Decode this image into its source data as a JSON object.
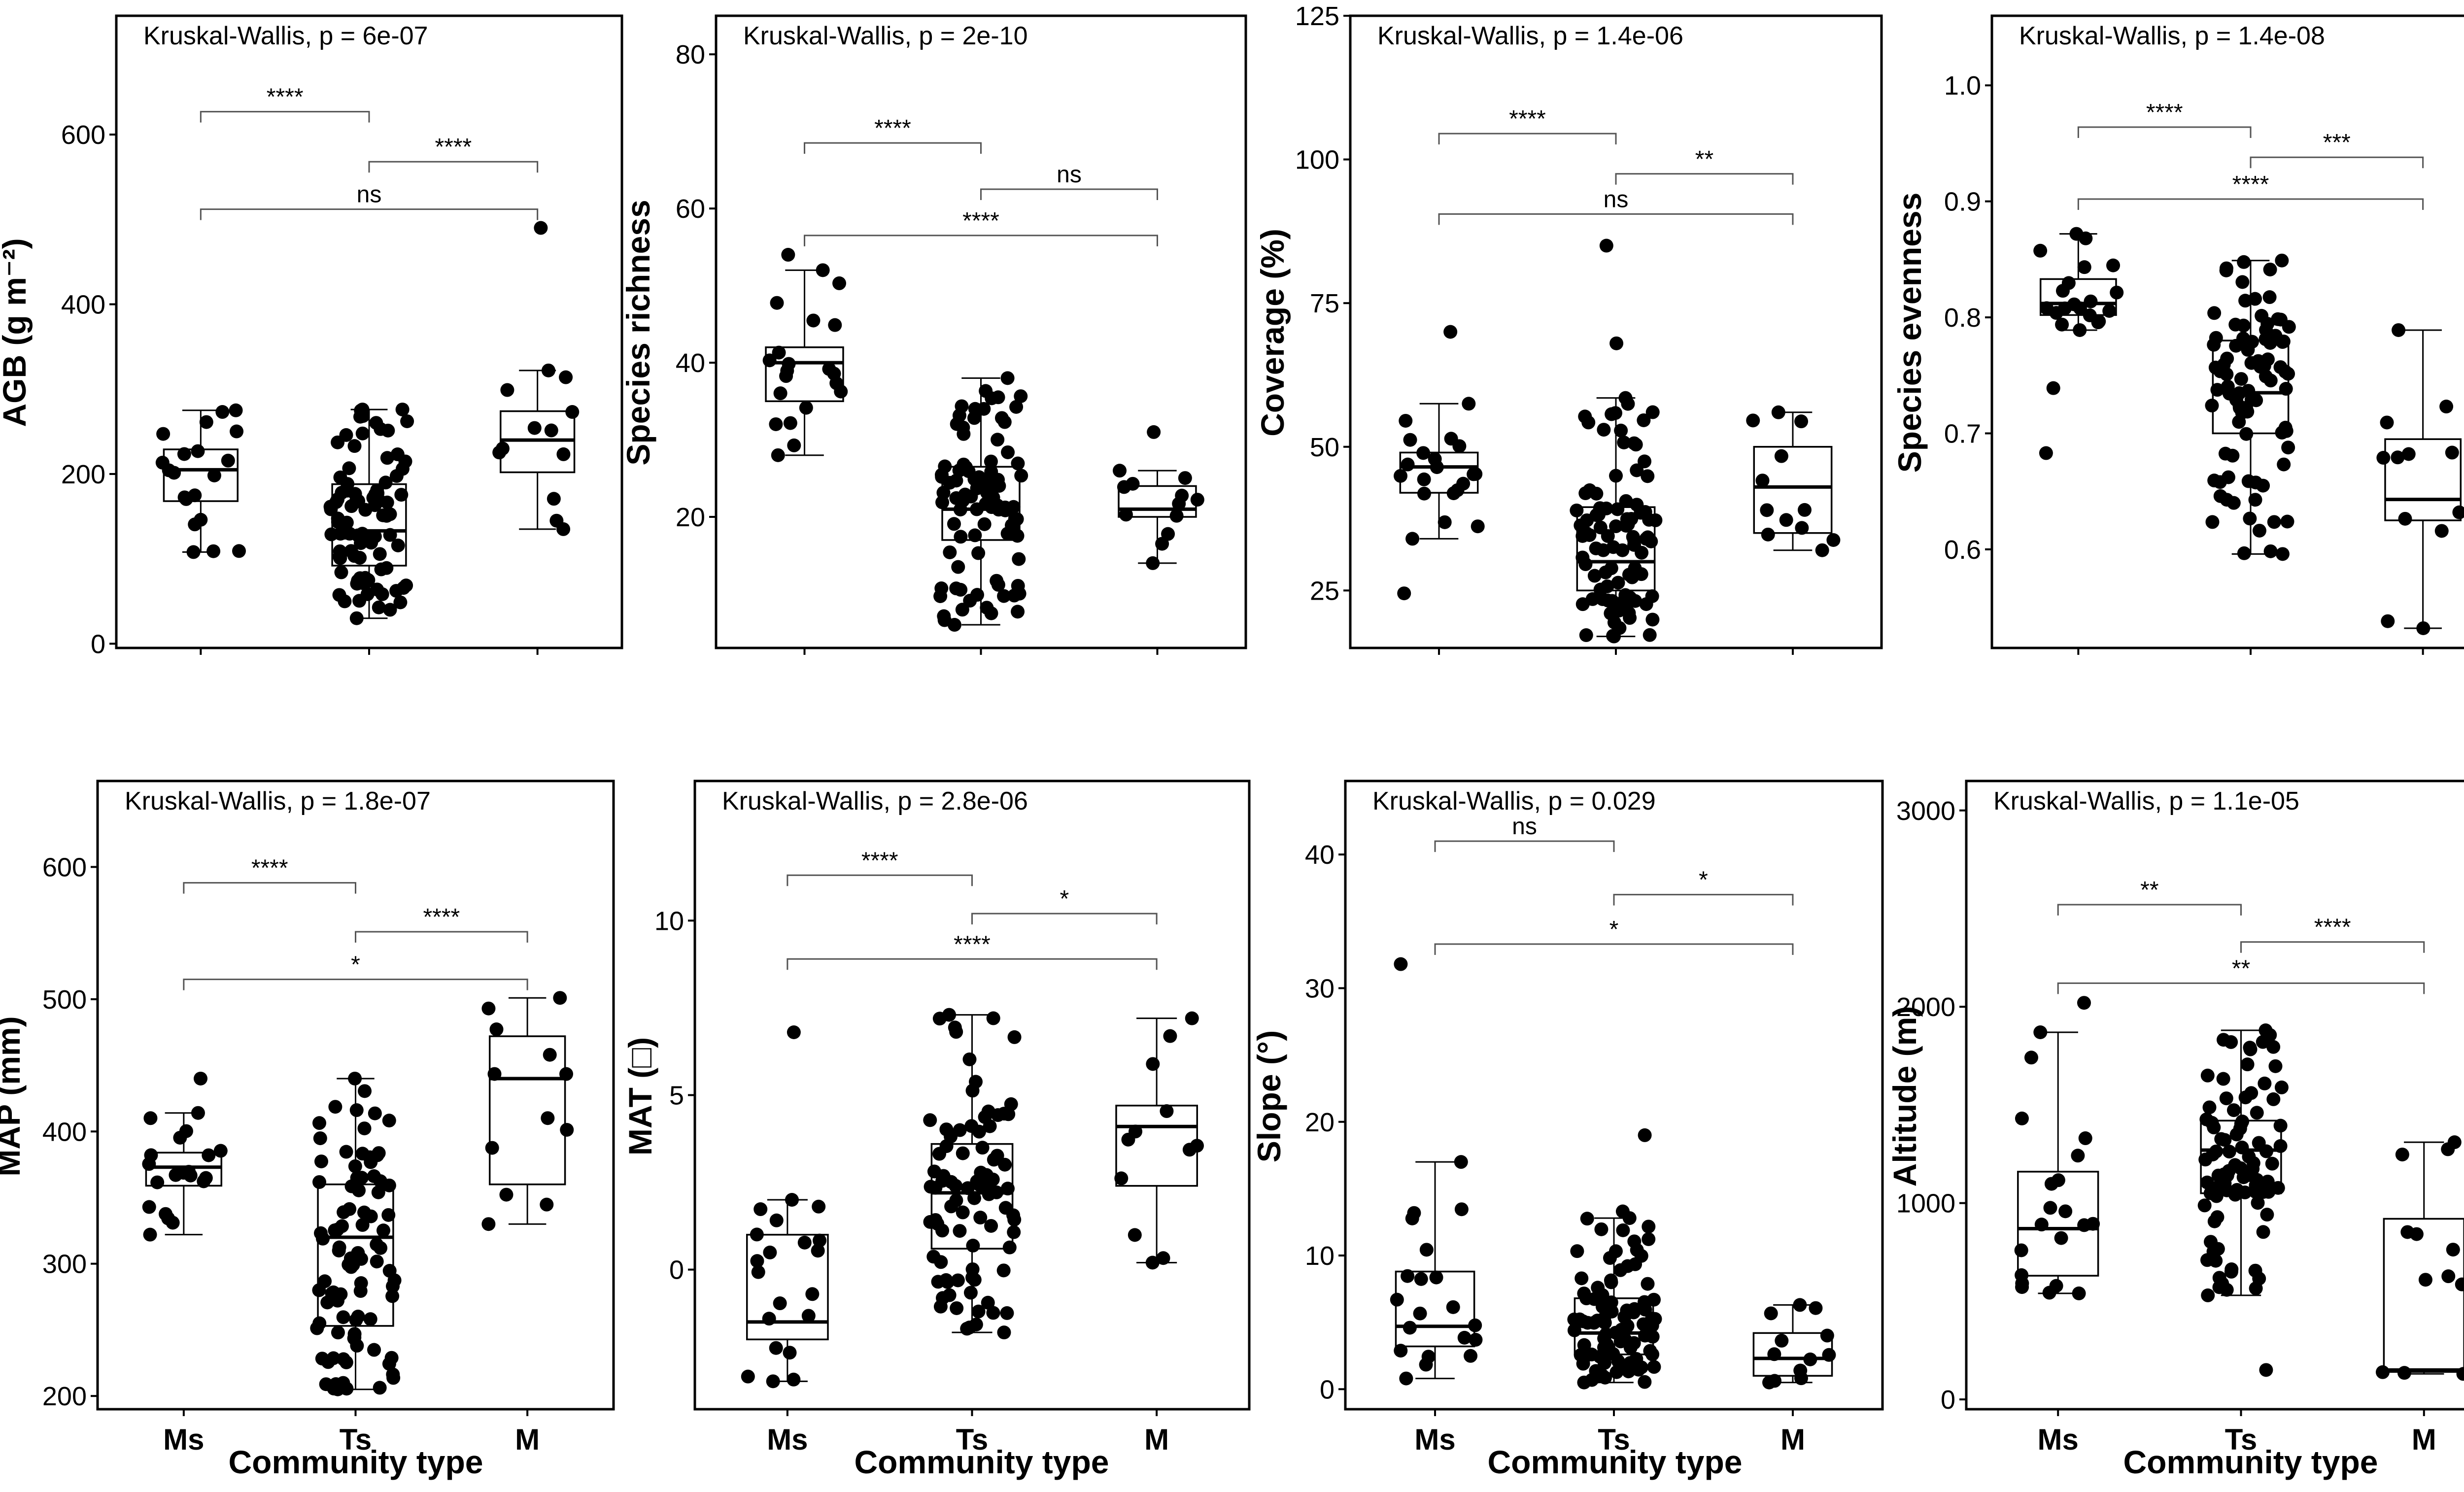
{
  "figure": {
    "x_title": "Community type",
    "categories": [
      "Ms",
      "Ts",
      "M"
    ]
  },
  "chart_data": [
    {
      "id": "agb",
      "type": "box",
      "ylabel": "AGB (g m⁻²)",
      "kruskal": "Kruskal-Wallis, p = 6e-07",
      "ylim": [
        -5,
        740
      ],
      "yticks": [
        0,
        200,
        400,
        600
      ],
      "y_tick_labels": [
        "0",
        "200",
        "400",
        "600"
      ],
      "boxes": [
        {
          "group": "Ms",
          "q1": 168,
          "median": 205,
          "q3": 229,
          "whisker_low": 108,
          "whisker_high": 275,
          "n": 20
        },
        {
          "group": "Ts",
          "q1": 92,
          "median": 133,
          "q3": 188,
          "whisker_low": 30,
          "whisker_high": 276,
          "n": 90
        },
        {
          "group": "M",
          "q1": 202,
          "median": 240,
          "q3": 274,
          "whisker_low": 135,
          "whisker_high": 322,
          "n": 12
        }
      ],
      "outliers": [
        {
          "group": "M",
          "value": 490
        }
      ],
      "comparisons": [
        {
          "from": "Ms",
          "to": "Ts",
          "label": "****",
          "y": 627
        },
        {
          "from": "Ts",
          "to": "M",
          "label": "****",
          "y": 568
        },
        {
          "from": "Ms",
          "to": "M",
          "label": "ns",
          "y": 512
        }
      ]
    },
    {
      "id": "richness",
      "type": "box",
      "ylabel": "Species richness",
      "kruskal": "Kruskal-Wallis, p = 2e-10",
      "ylim": [
        3,
        85
      ],
      "yticks": [
        20,
        40,
        60,
        80
      ],
      "y_tick_labels": [
        "20",
        "40",
        "60",
        "80"
      ],
      "boxes": [
        {
          "group": "Ms",
          "q1": 35,
          "median": 40,
          "q3": 42,
          "whisker_low": 28,
          "whisker_high": 52,
          "n": 20
        },
        {
          "group": "Ts",
          "q1": 17,
          "median": 21,
          "q3": 26.5,
          "whisker_low": 6,
          "whisker_high": 38,
          "n": 90
        },
        {
          "group": "M",
          "q1": 20,
          "median": 21,
          "q3": 24,
          "whisker_low": 14,
          "whisker_high": 26,
          "n": 12
        }
      ],
      "outliers": [
        {
          "group": "Ms",
          "value": 54
        },
        {
          "group": "M",
          "value": 31
        }
      ],
      "comparisons": [
        {
          "from": "Ms",
          "to": "Ts",
          "label": "****",
          "y": 68.5
        },
        {
          "from": "Ts",
          "to": "M",
          "label": "ns",
          "y": 62.5
        },
        {
          "from": "Ms",
          "to": "M",
          "label": "****",
          "y": 56.5
        }
      ]
    },
    {
      "id": "coverage",
      "type": "box",
      "ylabel": "Coverage (%)",
      "kruskal": "Kruskal-Wallis, p = 1.4e-06",
      "ylim": [
        15,
        125
      ],
      "yticks": [
        25,
        50,
        75,
        100,
        125
      ],
      "y_tick_labels": [
        "25",
        "50",
        "75",
        "100",
        "125"
      ],
      "boxes": [
        {
          "group": "Ms",
          "q1": 42,
          "median": 46.5,
          "q3": 49,
          "whisker_low": 34,
          "whisker_high": 57.5,
          "n": 20
        },
        {
          "group": "Ts",
          "q1": 25,
          "median": 30,
          "q3": 39.5,
          "whisker_low": 17,
          "whisker_high": 58.5,
          "n": 90
        },
        {
          "group": "M",
          "q1": 35,
          "median": 43,
          "q3": 50,
          "whisker_low": 32,
          "whisker_high": 56,
          "n": 12
        }
      ],
      "outliers": [
        {
          "group": "Ms",
          "value": 70
        },
        {
          "group": "Ms",
          "value": 24.5
        },
        {
          "group": "Ts",
          "value": 68
        },
        {
          "group": "Ts",
          "value": 85
        }
      ],
      "comparisons": [
        {
          "from": "Ms",
          "to": "Ts",
          "label": "****",
          "y": 104.5
        },
        {
          "from": "Ts",
          "to": "M",
          "label": "**",
          "y": 97.5
        },
        {
          "from": "Ms",
          "to": "M",
          "label": "ns",
          "y": 90.5
        }
      ]
    },
    {
      "id": "evenness",
      "type": "box",
      "ylabel": "Species evenness",
      "kruskal": "Kruskal-Wallis, p = 1.4e-08",
      "ylim": [
        0.515,
        1.06
      ],
      "yticks": [
        0.6,
        0.7,
        0.8,
        0.9,
        1.0
      ],
      "y_tick_labels": [
        "0.6",
        "0.7",
        "0.8",
        "0.9",
        "1.0"
      ],
      "boxes": [
        {
          "group": "Ms",
          "q1": 0.802,
          "median": 0.812,
          "q3": 0.833,
          "whisker_low": 0.789,
          "whisker_high": 0.872,
          "n": 20
        },
        {
          "group": "Ts",
          "q1": 0.7,
          "median": 0.735,
          "q3": 0.78,
          "whisker_low": 0.596,
          "whisker_high": 0.849,
          "n": 90
        },
        {
          "group": "M",
          "q1": 0.625,
          "median": 0.643,
          "q3": 0.695,
          "whisker_low": 0.532,
          "whisker_high": 0.789,
          "n": 12
        }
      ],
      "outliers": [
        {
          "group": "Ms",
          "value": 0.739
        },
        {
          "group": "Ms",
          "value": 0.683
        }
      ],
      "comparisons": [
        {
          "from": "Ms",
          "to": "Ts",
          "label": "****",
          "y": 0.964
        },
        {
          "from": "Ts",
          "to": "M",
          "label": "***",
          "y": 0.938
        },
        {
          "from": "Ms",
          "to": "M",
          "label": "****",
          "y": 0.902
        }
      ]
    },
    {
      "id": "map",
      "type": "box",
      "ylabel": "MAP (mm)",
      "kruskal": "Kruskal-Wallis, p = 1.8e-07",
      "ylim": [
        190,
        665
      ],
      "yticks": [
        200,
        300,
        400,
        500,
        600
      ],
      "y_tick_labels": [
        "200",
        "300",
        "400",
        "500",
        "600"
      ],
      "boxes": [
        {
          "group": "Ms",
          "q1": 359,
          "median": 373,
          "q3": 384,
          "whisker_low": 322,
          "whisker_high": 414,
          "n": 20
        },
        {
          "group": "Ts",
          "q1": 253,
          "median": 320,
          "q3": 360,
          "whisker_low": 205,
          "whisker_high": 440,
          "n": 90
        },
        {
          "group": "M",
          "q1": 360,
          "median": 440,
          "q3": 472,
          "whisker_low": 330,
          "whisker_high": 501,
          "n": 12
        }
      ],
      "outliers": [
        {
          "group": "Ms",
          "value": 440
        }
      ],
      "comparisons": [
        {
          "from": "Ms",
          "to": "Ts",
          "label": "****",
          "y": 588
        },
        {
          "from": "Ts",
          "to": "M",
          "label": "****",
          "y": 551
        },
        {
          "from": "Ms",
          "to": "M",
          "label": "*",
          "y": 515
        }
      ]
    },
    {
      "id": "mat",
      "type": "box",
      "ylabel": "MAT (□)",
      "kruskal": "Kruskal-Wallis, p = 2.8e-06",
      "ylim": [
        -4,
        14
      ],
      "yticks": [
        0,
        5,
        10
      ],
      "y_tick_labels": [
        "0",
        "5",
        "10"
      ],
      "boxes": [
        {
          "group": "Ms",
          "q1": -2.0,
          "median": -1.5,
          "q3": 1.0,
          "whisker_low": -3.2,
          "whisker_high": 2.0,
          "n": 20
        },
        {
          "group": "Ts",
          "q1": 0.6,
          "median": 2.2,
          "q3": 3.6,
          "whisker_low": -1.8,
          "whisker_high": 7.3,
          "n": 90
        },
        {
          "group": "M",
          "q1": 2.4,
          "median": 4.1,
          "q3": 4.7,
          "whisker_low": 0.2,
          "whisker_high": 7.2,
          "n": 12
        }
      ],
      "outliers": [
        {
          "group": "Ms",
          "value": 6.8
        }
      ],
      "comparisons": [
        {
          "from": "Ms",
          "to": "Ts",
          "label": "****",
          "y": 11.3
        },
        {
          "from": "Ts",
          "to": "M",
          "label": "*",
          "y": 10.2
        },
        {
          "from": "Ms",
          "to": "M",
          "label": "****",
          "y": 8.9
        }
      ]
    },
    {
      "id": "slope",
      "type": "box",
      "ylabel": "Slope (°)",
      "kruskal": "Kruskal-Wallis, p = 0.029",
      "ylim": [
        -1.5,
        45.5
      ],
      "yticks": [
        0,
        10,
        20,
        30,
        40
      ],
      "y_tick_labels": [
        "0",
        "10",
        "20",
        "30",
        "40"
      ],
      "boxes": [
        {
          "group": "Ms",
          "q1": 3.2,
          "median": 4.7,
          "q3": 8.8,
          "whisker_low": 0.8,
          "whisker_high": 17.0,
          "n": 20
        },
        {
          "group": "Ts",
          "q1": 2.6,
          "median": 4.2,
          "q3": 6.8,
          "whisker_low": 0.5,
          "whisker_high": 12.8,
          "n": 90
        },
        {
          "group": "M",
          "q1": 1.0,
          "median": 2.3,
          "q3": 4.2,
          "whisker_low": 0.5,
          "whisker_high": 6.3,
          "n": 12
        }
      ],
      "outliers": [
        {
          "group": "Ms",
          "value": 31.8
        },
        {
          "group": "Ts",
          "value": 19.0
        },
        {
          "group": "Ts",
          "value": 13.3
        }
      ],
      "comparisons": [
        {
          "from": "Ms",
          "to": "Ts",
          "label": "ns",
          "y": 41
        },
        {
          "from": "Ts",
          "to": "M",
          "label": "*",
          "y": 37
        },
        {
          "from": "Ms",
          "to": "M",
          "label": "*",
          "y": 33.3
        }
      ]
    },
    {
      "id": "altitude",
      "type": "box",
      "ylabel": "Altitude (m)",
      "kruskal": "Kruskal-Wallis, p = 1.1e-05",
      "ylim": [
        -50,
        3150
      ],
      "yticks": [
        0,
        1000,
        2000,
        3000
      ],
      "y_tick_labels": [
        "0",
        "1000",
        "2000",
        "3000"
      ],
      "boxes": [
        {
          "group": "Ms",
          "q1": 630,
          "median": 870,
          "q3": 1160,
          "whisker_low": 540,
          "whisker_high": 1870,
          "n": 20
        },
        {
          "group": "Ts",
          "q1": 1050,
          "median": 1270,
          "q3": 1420,
          "whisker_low": 530,
          "whisker_high": 1880,
          "n": 90
        },
        {
          "group": "M",
          "q1": 140,
          "median": 150,
          "q3": 920,
          "whisker_low": 130,
          "whisker_high": 1310,
          "n": 12
        }
      ],
      "outliers": [
        {
          "group": "Ms",
          "value": 2020
        },
        {
          "group": "Ts",
          "value": 150
        }
      ],
      "comparisons": [
        {
          "from": "Ms",
          "to": "Ts",
          "label": "**",
          "y": 2520
        },
        {
          "from": "Ts",
          "to": "M",
          "label": "****",
          "y": 2330
        },
        {
          "from": "Ms",
          "to": "M",
          "label": "**",
          "y": 2120
        }
      ]
    }
  ]
}
